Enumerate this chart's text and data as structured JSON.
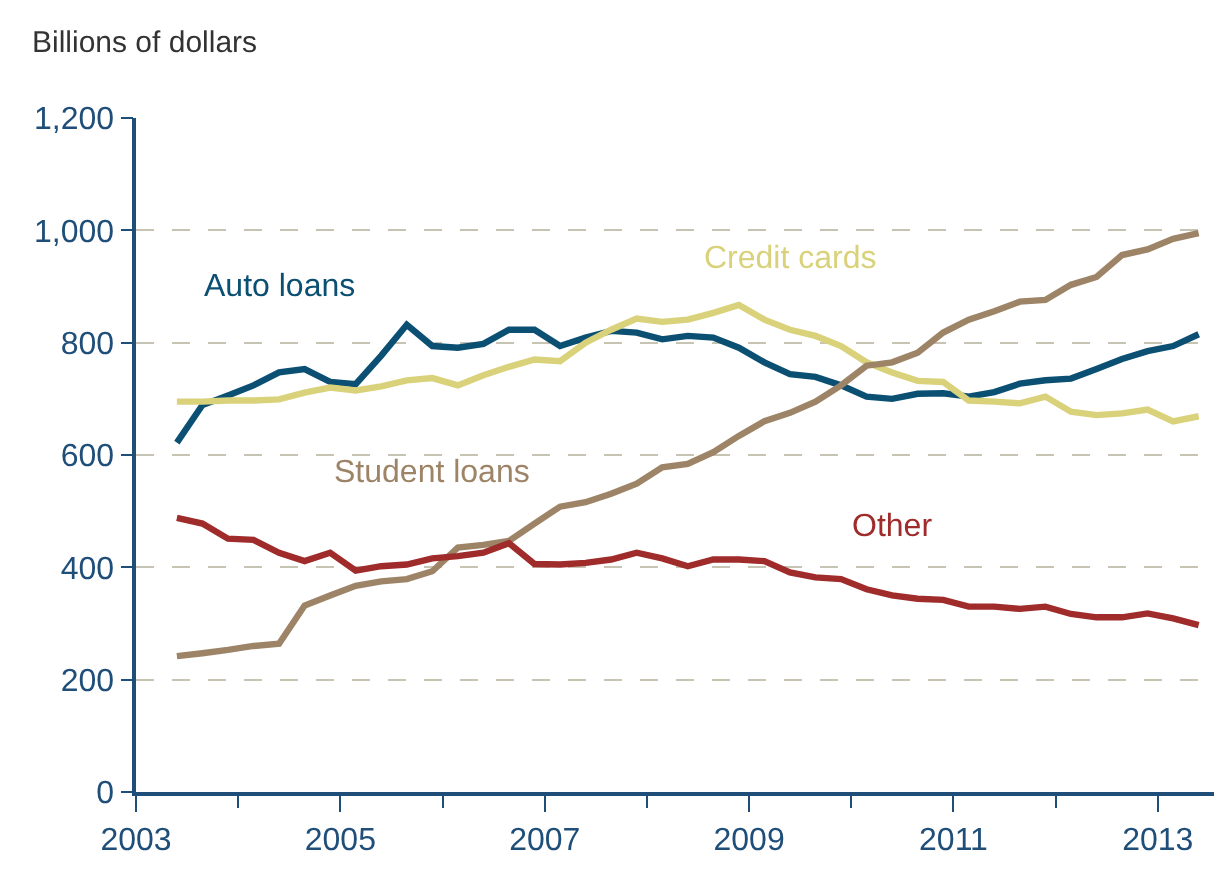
{
  "chart_data": {
    "type": "line",
    "ylabel": "Billions of dollars",
    "x": [
      2003.4,
      2003.65,
      2003.9,
      2004.15,
      2004.4,
      2004.65,
      2004.9,
      2005.15,
      2005.4,
      2005.65,
      2005.9,
      2006.15,
      2006.4,
      2006.65,
      2006.9,
      2007.15,
      2007.4,
      2007.65,
      2007.9,
      2008.15,
      2008.4,
      2008.65,
      2008.9,
      2009.15,
      2009.4,
      2009.65,
      2009.9,
      2010.15,
      2010.4,
      2010.65,
      2010.9,
      2011.15,
      2011.4,
      2011.65,
      2011.9,
      2012.15,
      2012.4,
      2012.65,
      2012.9,
      2013.15,
      2013.4
    ],
    "series": [
      {
        "name": "Auto loans",
        "color": "#0b4f73",
        "values": [
          622,
          689,
          706,
          724,
          747,
          753,
          730,
          726,
          777,
          832,
          794,
          791,
          798,
          823,
          823,
          794,
          809,
          821,
          818,
          806,
          812,
          809,
          791,
          765,
          744,
          739,
          724,
          704,
          700,
          709,
          710,
          704,
          712,
          727,
          733,
          736,
          753,
          771,
          785,
          794,
          815
        ]
      },
      {
        "name": "Credit cards",
        "color": "#d9d27a",
        "values": [
          695,
          695,
          697,
          697,
          699,
          711,
          720,
          715,
          722,
          733,
          737,
          724,
          742,
          757,
          770,
          767,
          800,
          823,
          843,
          837,
          841,
          853,
          867,
          841,
          823,
          812,
          794,
          765,
          747,
          732,
          730,
          697,
          695,
          692,
          704,
          677,
          671,
          674,
          681,
          660,
          669
        ]
      },
      {
        "name": "Student loans",
        "color": "#9e8467",
        "values": [
          242,
          247,
          253,
          260,
          264,
          332,
          350,
          367,
          375,
          379,
          393,
          435,
          440,
          447,
          478,
          508,
          516,
          531,
          549,
          578,
          584,
          605,
          634,
          660,
          675,
          695,
          724,
          759,
          765,
          782,
          818,
          841,
          856,
          873,
          876,
          903,
          917,
          956,
          966,
          985,
          995
        ]
      },
      {
        "name": "Other",
        "color": "#a02b2b",
        "values": [
          488,
          478,
          451,
          449,
          426,
          411,
          426,
          394,
          402,
          405,
          416,
          420,
          426,
          443,
          406,
          405,
          408,
          414,
          426,
          416,
          402,
          414,
          414,
          411,
          391,
          382,
          379,
          361,
          350,
          344,
          342,
          330,
          330,
          326,
          330,
          317,
          311,
          311,
          318,
          309,
          297
        ]
      }
    ],
    "xlim": [
      2003,
      2013.55
    ],
    "xticks": [
      2003,
      2005,
      2007,
      2009,
      2011,
      2013
    ],
    "ylim": [
      0,
      1200
    ],
    "yticks": [
      0,
      200,
      400,
      600,
      800,
      {
        "value": 1000,
        "label": "1,000"
      },
      {
        "value": 1200,
        "label": "1,200"
      }
    ],
    "grid": "y",
    "legend": false,
    "marker": "none",
    "line_style": "solid"
  }
}
